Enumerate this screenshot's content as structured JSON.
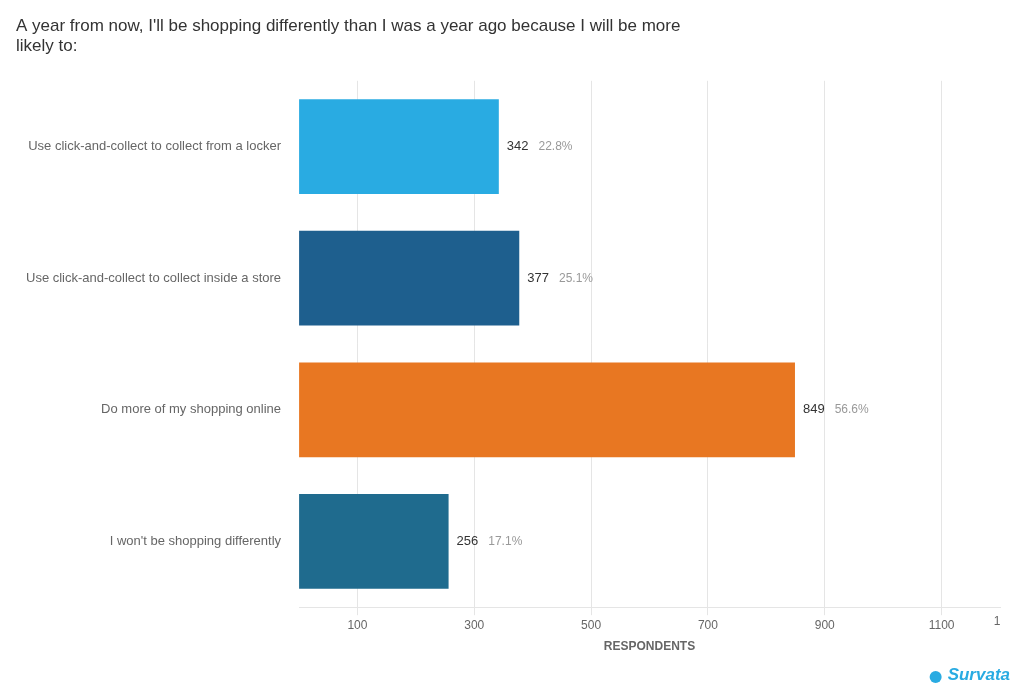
{
  "chart_data": {
    "type": "bar",
    "orientation": "horizontal",
    "title": [
      "A year from now, I'll be shopping differently than I was a year ago because I will be more",
      "likely to:"
    ],
    "categories": [
      "Use click-and-collect to collect from a locker",
      "Use click-and-collect to collect inside a store",
      "Do more of my shopping online",
      "I won't be shopping differently"
    ],
    "values": [
      342,
      377,
      849,
      256
    ],
    "percentages": [
      "22.8%",
      "25.1%",
      "56.6%",
      "17.1%"
    ],
    "colors": [
      "#29abe2",
      "#1e5f8e",
      "#e87722",
      "#1f6b8e"
    ],
    "x_label": "RESPONDENTS",
    "xlim": [
      0,
      1200
    ],
    "xticks": [
      100,
      300,
      500,
      700,
      900,
      1100
    ],
    "grid": true,
    "legend": false,
    "data_labels": true,
    "annotations": [
      {
        "text": "1",
        "x": 1195
      },
      {
        "text": "Survata",
        "color": "#29abe2"
      }
    ]
  }
}
